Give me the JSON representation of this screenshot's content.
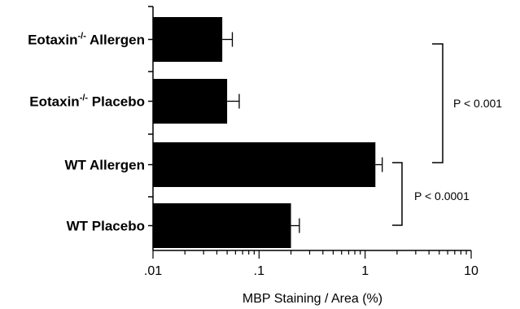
{
  "chart_data": {
    "type": "bar",
    "orientation": "horizontal",
    "x_scale": "log",
    "xlim": [
      0.01,
      10
    ],
    "xlabel": "MBP Staining / Area (%)",
    "x_tick_labels": [
      ".01",
      ".1",
      "1",
      "10"
    ],
    "x_tick_values": [
      0.01,
      0.1,
      1,
      10
    ],
    "categories": [
      {
        "main": "Eotaxin",
        "sup": "-/-",
        "rest": " Allergen"
      },
      {
        "main": "Eotaxin",
        "sup": "-/-",
        "rest": " Placebo"
      },
      {
        "main": "WT Allergen",
        "sup": "",
        "rest": ""
      },
      {
        "main": "WT Placebo",
        "sup": "",
        "rest": ""
      }
    ],
    "values": [
      0.045,
      0.05,
      1.25,
      0.2
    ],
    "error_upper": [
      0.056,
      0.065,
      1.45,
      0.24
    ],
    "bar_color": "#000000",
    "annotations": [
      {
        "text": "P < 0.001",
        "from_category": 0,
        "to_category": 2
      },
      {
        "text": "P < 0.0001",
        "from_category": 2,
        "to_category": 3
      }
    ],
    "grid": false
  }
}
